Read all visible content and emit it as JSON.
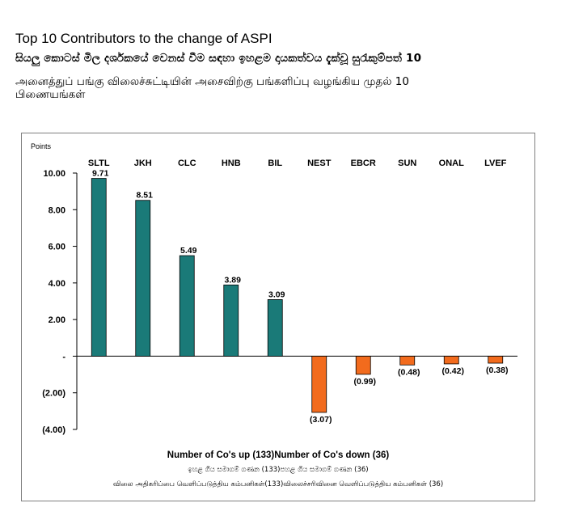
{
  "header": {
    "title": "Top 10 Contributors to the change of ASPI",
    "subtitle_sinhala": "සියලු කොටස් මිල දර්ශකයේ වෙනස් වීම සඳහා ඉහළම දායකත්වය දැක්වූ සුරැකුම්පත් 10",
    "subtitle_tamil_line1": "அனைத்துப் பங்கு விலைச்சுட்டியின் அசைவிற்கு பங்களிப்பு வழங்கிய முதல் 10",
    "subtitle_tamil_line2": "பிணையங்கள்"
  },
  "chart_data": {
    "type": "bar",
    "ylabel": "Points",
    "categories": [
      "SLTL",
      "JKH",
      "CLC",
      "HNB",
      "BIL",
      "NEST",
      "EBCR",
      "SUN",
      "ONAL",
      "LVEF"
    ],
    "values": [
      9.71,
      8.51,
      5.49,
      3.89,
      3.09,
      -3.07,
      -0.99,
      -0.48,
      -0.42,
      -0.38
    ],
    "data_labels": [
      "9.71",
      "8.51",
      "5.49",
      "3.89",
      "3.09",
      "(3.07)",
      "(0.99)",
      "(0.48)",
      "(0.42)",
      "(0.38)"
    ],
    "ylim": [
      -4,
      10
    ],
    "yticks": [
      10,
      8,
      6,
      4,
      2,
      0,
      -2,
      -4
    ],
    "ytick_labels": [
      "10.00",
      "8.00",
      "6.00",
      "4.00",
      "2.00",
      "-",
      "(2.00)",
      "(4.00)"
    ],
    "colors": {
      "positive": "#1a7a78",
      "negative": "#f26b1d"
    },
    "footer_line1": "Number of Co's up (133)Number of Co's down  (36)",
    "footer_line2": "ඉහළ ගිය සමාගම් ගණන (133)පහළ ගිය සමාගම් ගණන (36)",
    "footer_line3": "விலை அதிகரிப்பை வெளிப்படுத்திய கம்பனிகள்(133)விலைச்சரிவினை வெளிப்படுத்திய கம்பனிகள்  (36)"
  }
}
